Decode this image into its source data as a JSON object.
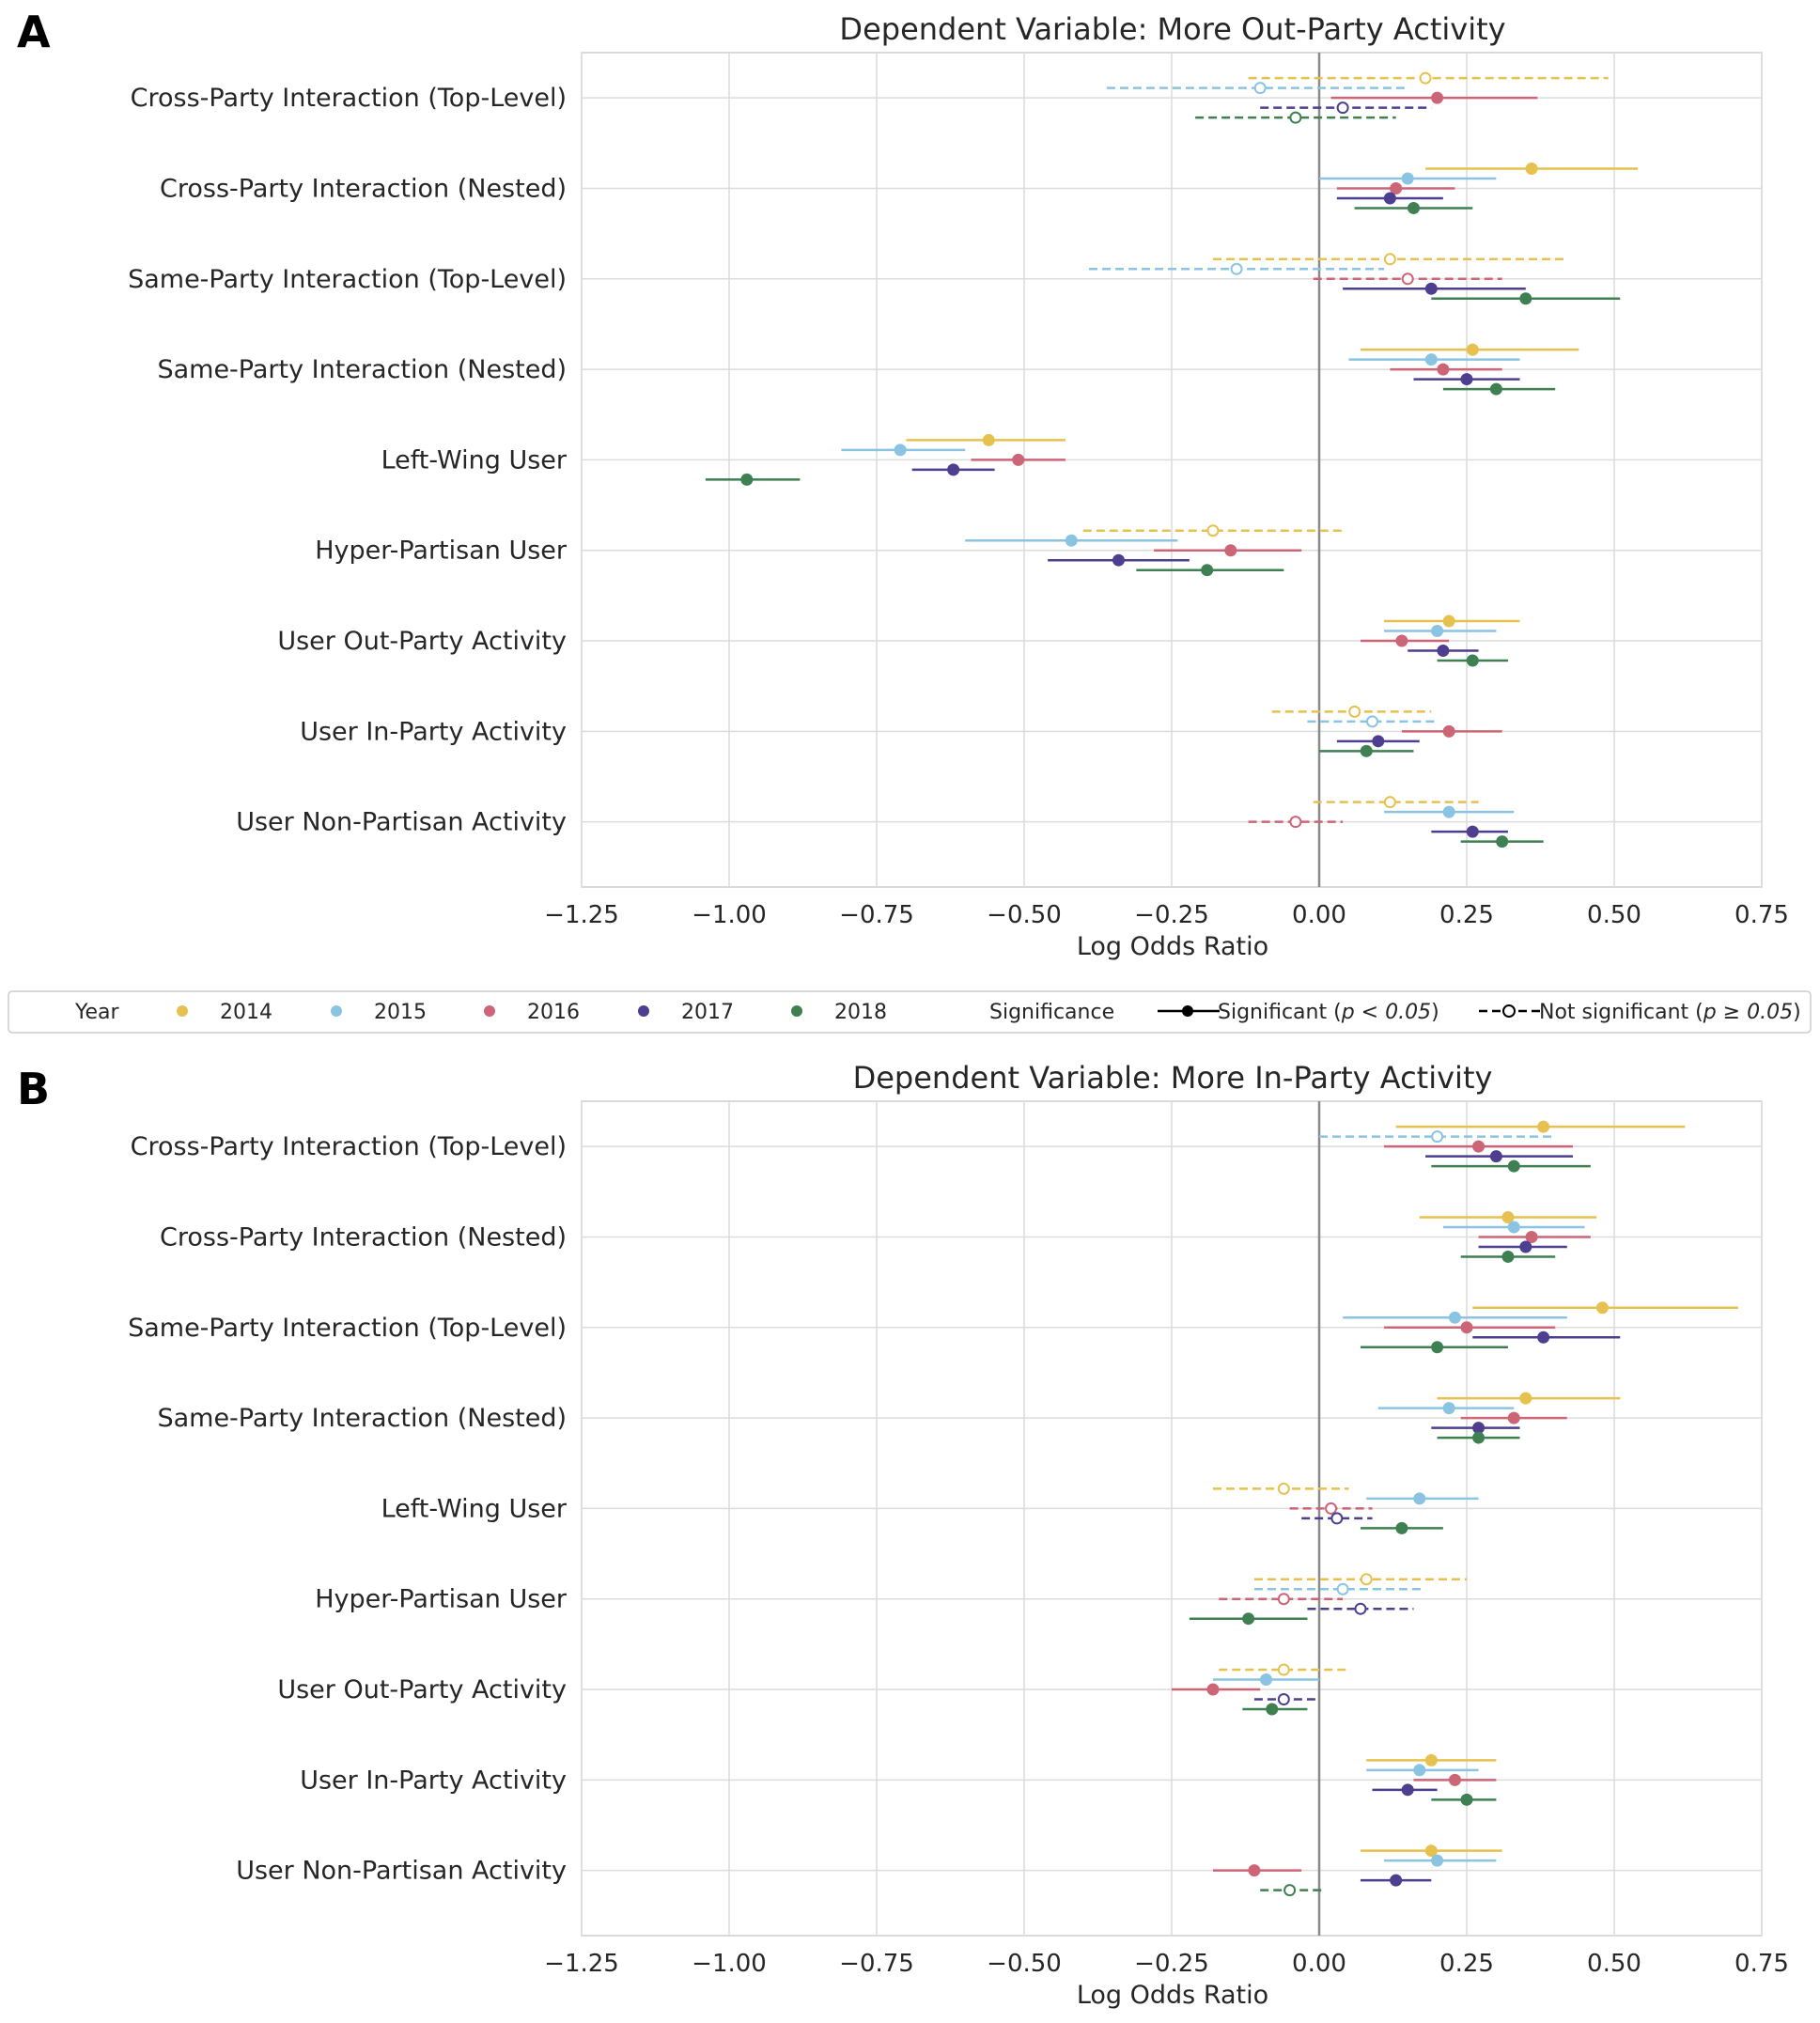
{
  "panel_letters": [
    "A",
    "B"
  ],
  "legend": {
    "year_title": "Year",
    "years": [
      {
        "label": "2014",
        "color": "#E6C14F"
      },
      {
        "label": "2015",
        "color": "#8BC4E3"
      },
      {
        "label": "2016",
        "color": "#CC6677"
      },
      {
        "label": "2017",
        "color": "#4E3E8F"
      },
      {
        "label": "2018",
        "color": "#3E8052"
      }
    ],
    "significance_title": "Significance",
    "significant_label": "Significant (",
    "significant_math": "p < 0.05",
    "not_significant_label": "Not significant (",
    "not_significant_math": "p ≥ 0.05",
    "close_paren": ")"
  },
  "chart_data": [
    {
      "type": "scatter",
      "subtype": "forest-plot",
      "title": "Dependent Variable: More Out-Party Activity",
      "xlabel": "Log Odds Ratio",
      "ylabel": "",
      "xlim": [
        -1.25,
        0.75
      ],
      "xticks": [
        -1.25,
        -1.0,
        -0.75,
        -0.5,
        -0.25,
        0.0,
        0.25,
        0.5,
        0.75
      ],
      "xtick_labels": [
        "−1.25",
        "−1.00",
        "−0.75",
        "−0.50",
        "−0.25",
        "0.00",
        "0.25",
        "0.50",
        "0.75"
      ],
      "reference_line_x": 0,
      "grid": true,
      "categories": [
        "Cross-Party Interaction (Top-Level)",
        "Cross-Party Interaction (Nested)",
        "Same-Party Interaction (Top-Level)",
        "Same-Party Interaction (Nested)",
        "Left-Wing User",
        "Hyper-Partisan User",
        "User Out-Party Activity",
        "User In-Party Activity",
        "User Non-Partisan Activity"
      ],
      "series": [
        {
          "name": "2014",
          "points": [
            {
              "est": 0.18,
              "lo": -0.12,
              "hi": 0.49,
              "sig": false
            },
            {
              "est": 0.36,
              "lo": 0.18,
              "hi": 0.54,
              "sig": true
            },
            {
              "est": 0.12,
              "lo": -0.18,
              "hi": 0.42,
              "sig": false
            },
            {
              "est": 0.26,
              "lo": 0.07,
              "hi": 0.44,
              "sig": true
            },
            {
              "est": -0.56,
              "lo": -0.7,
              "hi": -0.43,
              "sig": true
            },
            {
              "est": -0.18,
              "lo": -0.4,
              "hi": 0.04,
              "sig": false
            },
            {
              "est": 0.22,
              "lo": 0.11,
              "hi": 0.34,
              "sig": true
            },
            {
              "est": 0.06,
              "lo": -0.08,
              "hi": 0.19,
              "sig": false
            },
            {
              "est": 0.12,
              "lo": -0.01,
              "hi": 0.27,
              "sig": false
            }
          ]
        },
        {
          "name": "2015",
          "points": [
            {
              "est": -0.1,
              "lo": -0.36,
              "hi": 0.15,
              "sig": false
            },
            {
              "est": 0.15,
              "lo": 0.0,
              "hi": 0.3,
              "sig": true
            },
            {
              "est": -0.14,
              "lo": -0.39,
              "hi": 0.11,
              "sig": false
            },
            {
              "est": 0.19,
              "lo": 0.05,
              "hi": 0.34,
              "sig": true
            },
            {
              "est": -0.71,
              "lo": -0.81,
              "hi": -0.6,
              "sig": true
            },
            {
              "est": -0.42,
              "lo": -0.6,
              "hi": -0.24,
              "sig": true
            },
            {
              "est": 0.2,
              "lo": 0.11,
              "hi": 0.3,
              "sig": true
            },
            {
              "est": 0.09,
              "lo": -0.02,
              "hi": 0.2,
              "sig": false
            },
            {
              "est": 0.22,
              "lo": 0.11,
              "hi": 0.33,
              "sig": true
            }
          ]
        },
        {
          "name": "2016",
          "points": [
            {
              "est": 0.2,
              "lo": 0.02,
              "hi": 0.37,
              "sig": true
            },
            {
              "est": 0.13,
              "lo": 0.03,
              "hi": 0.23,
              "sig": true
            },
            {
              "est": 0.15,
              "lo": -0.01,
              "hi": 0.31,
              "sig": false
            },
            {
              "est": 0.21,
              "lo": 0.12,
              "hi": 0.31,
              "sig": true
            },
            {
              "est": -0.51,
              "lo": -0.59,
              "hi": -0.43,
              "sig": true
            },
            {
              "est": -0.15,
              "lo": -0.28,
              "hi": -0.03,
              "sig": true
            },
            {
              "est": 0.14,
              "lo": 0.07,
              "hi": 0.22,
              "sig": true
            },
            {
              "est": 0.22,
              "lo": 0.14,
              "hi": 0.31,
              "sig": true
            },
            {
              "est": -0.04,
              "lo": -0.12,
              "hi": 0.04,
              "sig": false
            }
          ]
        },
        {
          "name": "2017",
          "points": [
            {
              "est": 0.04,
              "lo": -0.1,
              "hi": 0.19,
              "sig": false
            },
            {
              "est": 0.12,
              "lo": 0.03,
              "hi": 0.21,
              "sig": true
            },
            {
              "est": 0.19,
              "lo": 0.04,
              "hi": 0.35,
              "sig": true
            },
            {
              "est": 0.25,
              "lo": 0.16,
              "hi": 0.34,
              "sig": true
            },
            {
              "est": -0.62,
              "lo": -0.69,
              "hi": -0.55,
              "sig": true
            },
            {
              "est": -0.34,
              "lo": -0.46,
              "hi": -0.22,
              "sig": true
            },
            {
              "est": 0.21,
              "lo": 0.15,
              "hi": 0.27,
              "sig": true
            },
            {
              "est": 0.1,
              "lo": 0.03,
              "hi": 0.17,
              "sig": true
            },
            {
              "est": 0.26,
              "lo": 0.19,
              "hi": 0.32,
              "sig": true
            }
          ]
        },
        {
          "name": "2018",
          "points": [
            {
              "est": -0.04,
              "lo": -0.21,
              "hi": 0.13,
              "sig": false
            },
            {
              "est": 0.16,
              "lo": 0.06,
              "hi": 0.26,
              "sig": true
            },
            {
              "est": 0.35,
              "lo": 0.19,
              "hi": 0.51,
              "sig": true
            },
            {
              "est": 0.3,
              "lo": 0.21,
              "hi": 0.4,
              "sig": true
            },
            {
              "est": -0.97,
              "lo": -1.04,
              "hi": -0.88,
              "sig": true
            },
            {
              "est": -0.19,
              "lo": -0.31,
              "hi": -0.06,
              "sig": true
            },
            {
              "est": 0.26,
              "lo": 0.2,
              "hi": 0.32,
              "sig": true
            },
            {
              "est": 0.08,
              "lo": 0.0,
              "hi": 0.16,
              "sig": true
            },
            {
              "est": 0.31,
              "lo": 0.24,
              "hi": 0.38,
              "sig": true
            }
          ]
        }
      ]
    },
    {
      "type": "scatter",
      "subtype": "forest-plot",
      "title": "Dependent Variable: More In-Party Activity",
      "xlabel": "Log Odds Ratio",
      "ylabel": "",
      "xlim": [
        -1.25,
        0.75
      ],
      "xticks": [
        -1.25,
        -1.0,
        -0.75,
        -0.5,
        -0.25,
        0.0,
        0.25,
        0.5,
        0.75
      ],
      "xtick_labels": [
        "−1.25",
        "−1.00",
        "−0.75",
        "−0.50",
        "−0.25",
        "0.00",
        "0.25",
        "0.50",
        "0.75"
      ],
      "reference_line_x": 0,
      "grid": true,
      "categories": [
        "Cross-Party Interaction (Top-Level)",
        "Cross-Party Interaction (Nested)",
        "Same-Party Interaction (Top-Level)",
        "Same-Party Interaction (Nested)",
        "Left-Wing User",
        "Hyper-Partisan User",
        "User Out-Party Activity",
        "User In-Party Activity",
        "User Non-Partisan Activity"
      ],
      "series": [
        {
          "name": "2014",
          "points": [
            {
              "est": 0.38,
              "lo": 0.13,
              "hi": 0.62,
              "sig": true
            },
            {
              "est": 0.32,
              "lo": 0.17,
              "hi": 0.47,
              "sig": true
            },
            {
              "est": 0.48,
              "lo": 0.26,
              "hi": 0.71,
              "sig": true
            },
            {
              "est": 0.35,
              "lo": 0.2,
              "hi": 0.51,
              "sig": true
            },
            {
              "est": -0.06,
              "lo": -0.18,
              "hi": 0.05,
              "sig": false
            },
            {
              "est": 0.08,
              "lo": -0.11,
              "hi": 0.25,
              "sig": false
            },
            {
              "est": -0.06,
              "lo": -0.17,
              "hi": 0.05,
              "sig": false
            },
            {
              "est": 0.19,
              "lo": 0.08,
              "hi": 0.3,
              "sig": true
            },
            {
              "est": 0.19,
              "lo": 0.07,
              "hi": 0.31,
              "sig": true
            }
          ]
        },
        {
          "name": "2015",
          "points": [
            {
              "est": 0.2,
              "lo": 0.0,
              "hi": 0.4,
              "sig": false
            },
            {
              "est": 0.33,
              "lo": 0.21,
              "hi": 0.45,
              "sig": true
            },
            {
              "est": 0.23,
              "lo": 0.04,
              "hi": 0.42,
              "sig": true
            },
            {
              "est": 0.22,
              "lo": 0.1,
              "hi": 0.33,
              "sig": true
            },
            {
              "est": 0.17,
              "lo": 0.08,
              "hi": 0.27,
              "sig": true
            },
            {
              "est": 0.04,
              "lo": -0.11,
              "hi": 0.18,
              "sig": false
            },
            {
              "est": -0.09,
              "lo": -0.18,
              "hi": 0.0,
              "sig": true
            },
            {
              "est": 0.17,
              "lo": 0.08,
              "hi": 0.27,
              "sig": true
            },
            {
              "est": 0.2,
              "lo": 0.11,
              "hi": 0.3,
              "sig": true
            }
          ]
        },
        {
          "name": "2016",
          "points": [
            {
              "est": 0.27,
              "lo": 0.11,
              "hi": 0.43,
              "sig": true
            },
            {
              "est": 0.36,
              "lo": 0.27,
              "hi": 0.46,
              "sig": true
            },
            {
              "est": 0.25,
              "lo": 0.11,
              "hi": 0.4,
              "sig": true
            },
            {
              "est": 0.33,
              "lo": 0.24,
              "hi": 0.42,
              "sig": true
            },
            {
              "est": 0.02,
              "lo": -0.05,
              "hi": 0.09,
              "sig": false
            },
            {
              "est": -0.06,
              "lo": -0.17,
              "hi": 0.04,
              "sig": false
            },
            {
              "est": -0.18,
              "lo": -0.25,
              "hi": -0.1,
              "sig": true
            },
            {
              "est": 0.23,
              "lo": 0.16,
              "hi": 0.3,
              "sig": true
            },
            {
              "est": -0.11,
              "lo": -0.18,
              "hi": -0.03,
              "sig": true
            }
          ]
        },
        {
          "name": "2017",
          "points": [
            {
              "est": 0.3,
              "lo": 0.18,
              "hi": 0.43,
              "sig": true
            },
            {
              "est": 0.35,
              "lo": 0.27,
              "hi": 0.42,
              "sig": true
            },
            {
              "est": 0.38,
              "lo": 0.26,
              "hi": 0.51,
              "sig": true
            },
            {
              "est": 0.27,
              "lo": 0.19,
              "hi": 0.34,
              "sig": true
            },
            {
              "est": 0.03,
              "lo": -0.03,
              "hi": 0.09,
              "sig": false
            },
            {
              "est": 0.07,
              "lo": -0.02,
              "hi": 0.16,
              "sig": false
            },
            {
              "est": -0.06,
              "lo": -0.11,
              "hi": 0.0,
              "sig": false
            },
            {
              "est": 0.15,
              "lo": 0.09,
              "hi": 0.2,
              "sig": true
            },
            {
              "est": 0.13,
              "lo": 0.07,
              "hi": 0.19,
              "sig": true
            }
          ]
        },
        {
          "name": "2018",
          "points": [
            {
              "est": 0.33,
              "lo": 0.19,
              "hi": 0.46,
              "sig": true
            },
            {
              "est": 0.32,
              "lo": 0.24,
              "hi": 0.4,
              "sig": true
            },
            {
              "est": 0.2,
              "lo": 0.07,
              "hi": 0.32,
              "sig": true
            },
            {
              "est": 0.27,
              "lo": 0.2,
              "hi": 0.34,
              "sig": true
            },
            {
              "est": 0.14,
              "lo": 0.07,
              "hi": 0.21,
              "sig": true
            },
            {
              "est": -0.12,
              "lo": -0.22,
              "hi": -0.02,
              "sig": true
            },
            {
              "est": -0.08,
              "lo": -0.13,
              "hi": -0.02,
              "sig": true
            },
            {
              "est": 0.25,
              "lo": 0.19,
              "hi": 0.3,
              "sig": true
            },
            {
              "est": -0.05,
              "lo": -0.1,
              "hi": 0.01,
              "sig": false
            }
          ]
        }
      ]
    }
  ]
}
